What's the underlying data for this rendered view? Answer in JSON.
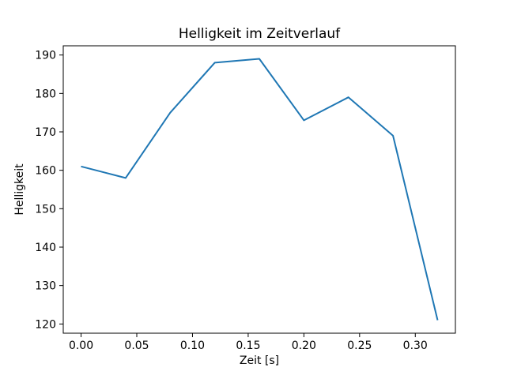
{
  "chart_data": {
    "type": "line",
    "title": "Helligkeit im Zeitverlauf",
    "xlabel": "Zeit [s]",
    "ylabel": "Helligkeit",
    "x": [
      0.0,
      0.04,
      0.08,
      0.12,
      0.16,
      0.2,
      0.24,
      0.28,
      0.32
    ],
    "y": [
      161,
      158,
      175,
      188,
      189,
      173,
      179,
      169,
      121
    ],
    "xlim": [
      -0.016,
      0.336
    ],
    "ylim": [
      117.6,
      192.4
    ],
    "xtick_values": [
      0.0,
      0.05,
      0.1,
      0.15,
      0.2,
      0.25,
      0.3
    ],
    "xtick_labels": [
      "0.00",
      "0.05",
      "0.10",
      "0.15",
      "0.20",
      "0.25",
      "0.30"
    ],
    "ytick_values": [
      120,
      130,
      140,
      150,
      160,
      170,
      180,
      190
    ],
    "ytick_labels": [
      "120",
      "130",
      "140",
      "150",
      "160",
      "170",
      "180",
      "190"
    ],
    "line_color": "#1f77b4",
    "frame_color": "#000000",
    "grid": false,
    "legend": null
  }
}
